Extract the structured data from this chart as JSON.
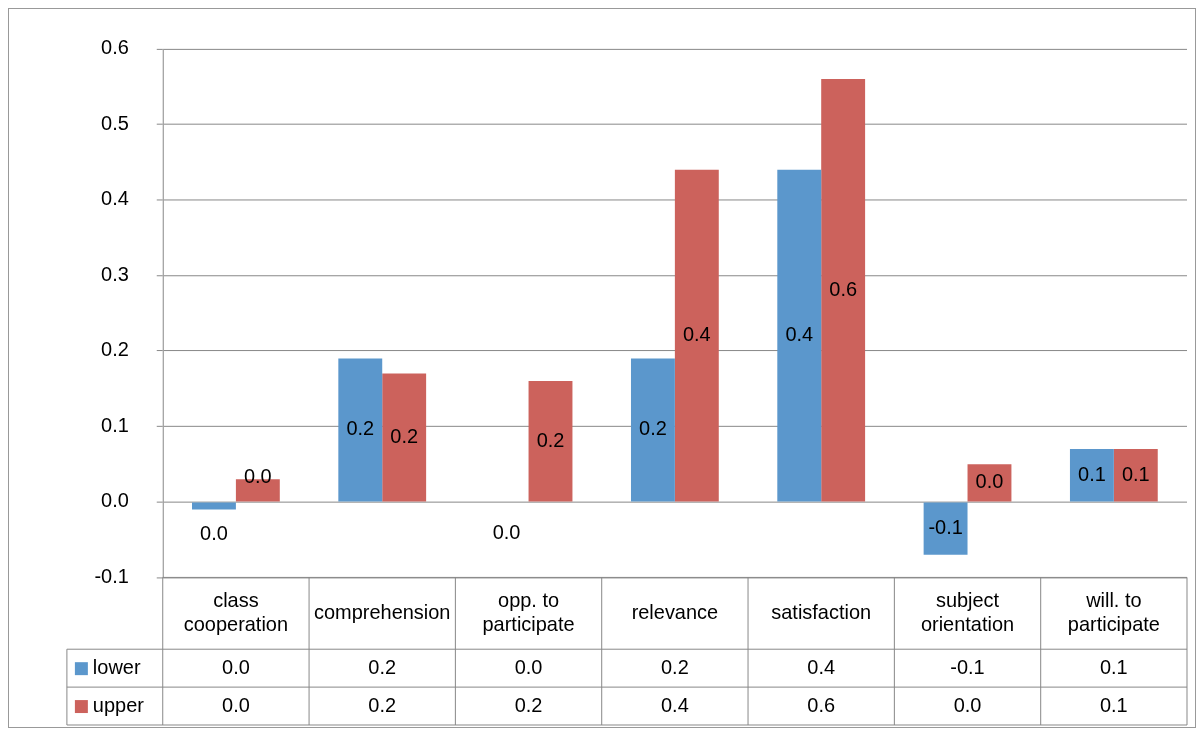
{
  "chart_data": {
    "type": "bar",
    "categories": [
      "class cooperation",
      "comprehension",
      "opp. to participate",
      "relevance",
      "satisfaction",
      "subject orientation",
      "will. to participate"
    ],
    "series": [
      {
        "name": "lower",
        "color": "#5b97cc",
        "values": [
          -0.01,
          0.19,
          0.0,
          0.19,
          0.44,
          -0.07,
          0.07
        ],
        "value_labels": [
          "0.0",
          "0.2",
          "0.0",
          "0.2",
          "0.4",
          "-0.1",
          "0.1"
        ]
      },
      {
        "name": "upper",
        "color": "#cc625c",
        "values": [
          0.03,
          0.17,
          0.16,
          0.44,
          0.56,
          0.05,
          0.07
        ],
        "value_labels": [
          "0.0",
          "0.2",
          "0.2",
          "0.4",
          "0.6",
          "0.0",
          "0.1"
        ]
      }
    ],
    "ylim": [
      -0.1,
      0.6
    ],
    "yticks": [
      {
        "value": -0.1,
        "label": "-0.1"
      },
      {
        "value": 0,
        "label": "0.0"
      },
      {
        "value": 0.1,
        "label": "0.1"
      },
      {
        "value": 0.2,
        "label": "0.2"
      },
      {
        "value": 0.3,
        "label": "0.3"
      },
      {
        "value": 0.4,
        "label": "0.4"
      },
      {
        "value": 0.5,
        "label": "0.5"
      },
      {
        "value": 0.6,
        "label": "0.6"
      }
    ],
    "grid": "y",
    "legend": "bottom"
  }
}
